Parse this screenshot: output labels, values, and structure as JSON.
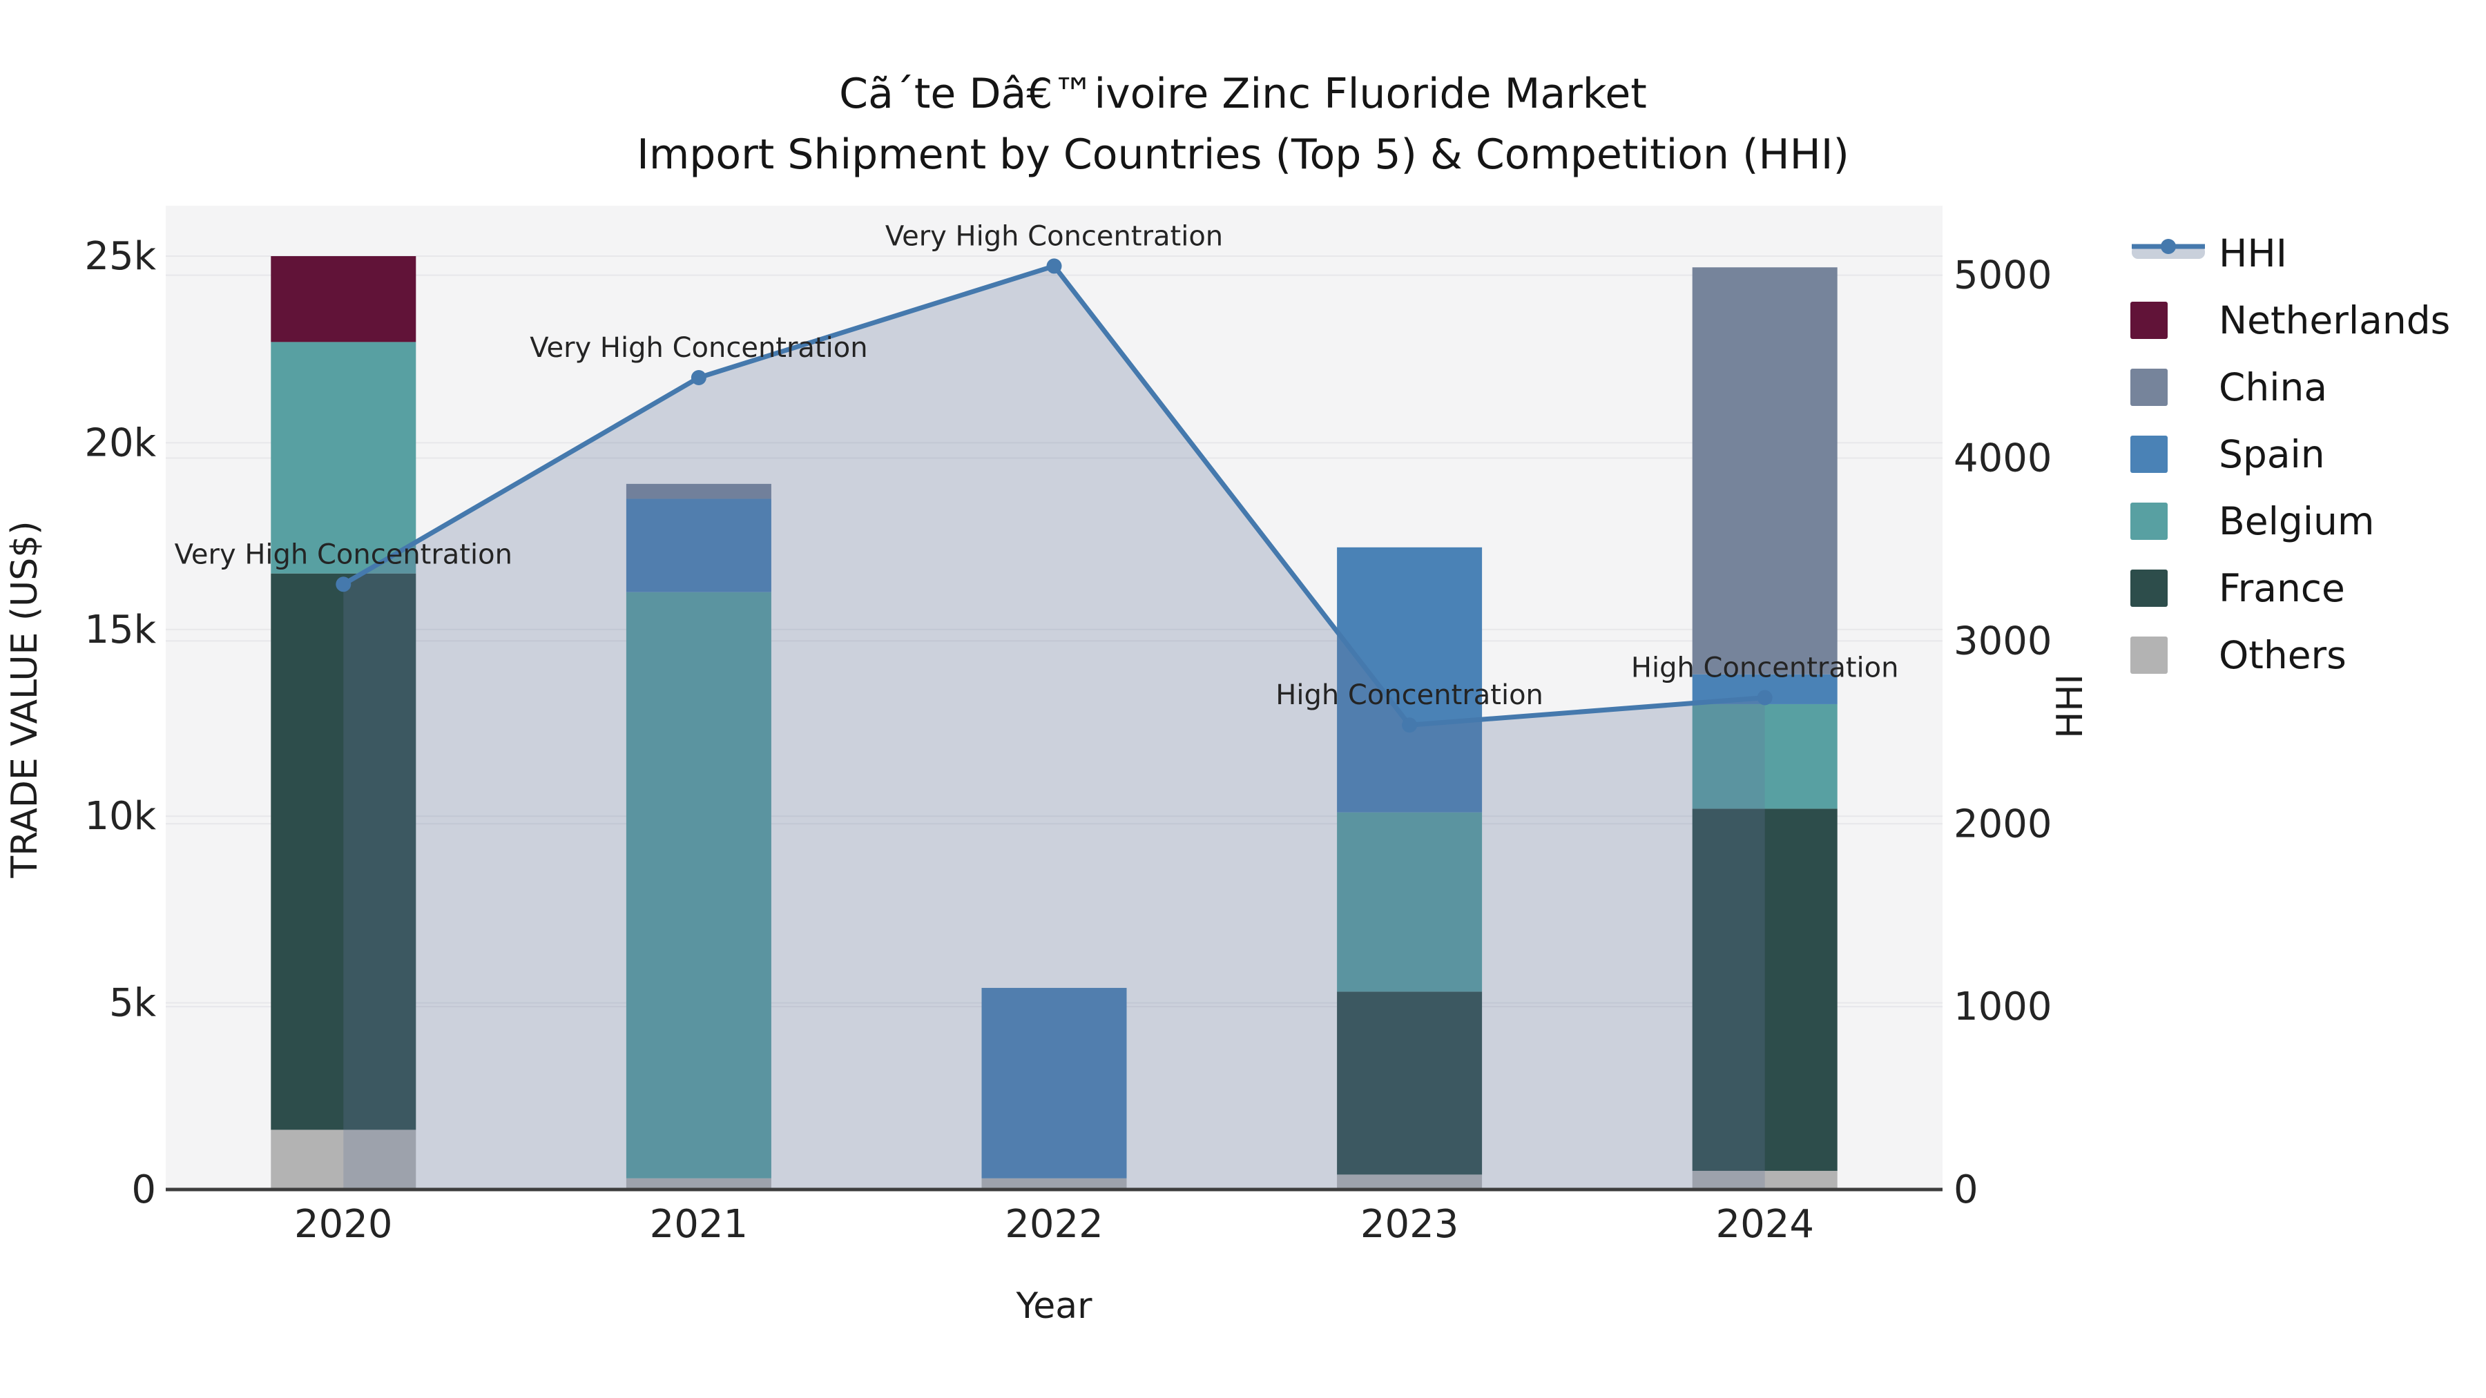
{
  "chart_data": {
    "type": "bar+line",
    "title": "Cã´te Dâ€™ivoire Zinc Fluoride Market",
    "subtitle": "Import Shipment by Countries (Top 5) & Competition (HHI)",
    "xlabel": "Year",
    "ylabel_left": "TRADE VALUE (US$)",
    "ylabel_right": "HHI",
    "categories": [
      "2020",
      "2021",
      "2022",
      "2023",
      "2024"
    ],
    "bar_series": [
      {
        "name": "Others",
        "color": "#b3b3b3",
        "values": [
          1600,
          300,
          300,
          400,
          500
        ]
      },
      {
        "name": "France",
        "color": "#2d4d4b",
        "values": [
          14900,
          0,
          0,
          4900,
          9700
        ]
      },
      {
        "name": "Belgium",
        "color": "#58a0a2",
        "values": [
          6200,
          15700,
          0,
          4800,
          2800
        ]
      },
      {
        "name": "Spain",
        "color": "#4a82b6",
        "values": [
          0,
          2500,
          5100,
          7100,
          800
        ]
      },
      {
        "name": "China",
        "color": "#76849b",
        "values": [
          0,
          400,
          0,
          0,
          10900
        ]
      },
      {
        "name": "Netherlands",
        "color": "#611338",
        "values": [
          2300,
          0,
          0,
          0,
          0
        ]
      }
    ],
    "line_series": {
      "name": "HHI",
      "color": "#4579ad",
      "area_fill": "rgba(100,118,155,0.28)",
      "values": [
        3310,
        4440,
        5050,
        2540,
        2690
      ]
    },
    "annotations": [
      "Very High Concentration",
      "Very High Concentration",
      "Very High Concentration",
      "High Concentration",
      "High Concentration"
    ],
    "left_axis": {
      "ylim": [
        0,
        26350
      ],
      "tick_values": [
        0,
        5000,
        10000,
        15000,
        20000,
        25000
      ],
      "tick_labels": [
        "0",
        "5k",
        "10k",
        "15k",
        "20k",
        "25k"
      ]
    },
    "right_axis": {
      "ylim": [
        0,
        5380
      ],
      "tick_values": [
        0,
        1000,
        2000,
        3000,
        4000,
        5000
      ],
      "tick_labels": [
        "0",
        "1000",
        "2000",
        "3000",
        "4000",
        "5000"
      ]
    },
    "legend": [
      {
        "label": "HHI",
        "type": "line",
        "color": "#4579ad"
      },
      {
        "label": "Netherlands",
        "type": "patch",
        "color": "#611338"
      },
      {
        "label": "China",
        "type": "patch",
        "color": "#76849b"
      },
      {
        "label": "Spain",
        "type": "patch",
        "color": "#4a82b6"
      },
      {
        "label": "Belgium",
        "type": "patch",
        "color": "#58a0a2"
      },
      {
        "label": "France",
        "type": "patch",
        "color": "#2d4d4b"
      },
      {
        "label": "Others",
        "type": "patch",
        "color": "#b3b3b3"
      }
    ],
    "plot_bg": "#f4f4f5",
    "grid_color": "#e7e7ea",
    "spine_color": "#3d3d3d",
    "legend_band_color": "#c9d0db"
  }
}
